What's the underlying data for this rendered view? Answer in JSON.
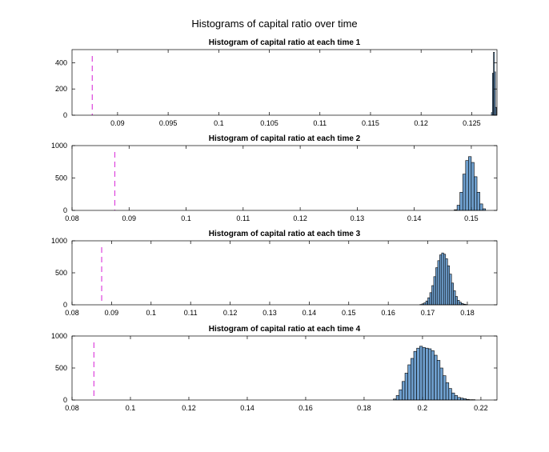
{
  "figure": {
    "title": "Histograms of capital ratio over time"
  },
  "colors": {
    "background": "#ffffff",
    "axis": "#000000",
    "bar_edge": "#000000",
    "bar_fill": "#6fa0cf",
    "threshold_line": "#dd44dd"
  },
  "chart_data": [
    {
      "type": "bar",
      "title": "Histogram of capital ratio at each time 1",
      "xlabel": "",
      "ylabel": "",
      "xlim": [
        0.0855,
        0.1275
      ],
      "ylim": [
        0,
        500
      ],
      "xticks": [
        0.09,
        0.095,
        0.1,
        0.105,
        0.11,
        0.115,
        0.12,
        0.125
      ],
      "xtick_labels": [
        "0.09",
        "0.095",
        "0.1",
        "0.105",
        "0.11",
        "0.115",
        "0.12",
        "0.125"
      ],
      "yticks": [
        0,
        200,
        400
      ],
      "ytick_labels": [
        "0",
        "200",
        "400"
      ],
      "grid": false,
      "threshold": 0.0875,
      "bins": [
        {
          "x0": 0.12695,
          "x1": 0.12705,
          "count": 20
        },
        {
          "x0": 0.12705,
          "x1": 0.12715,
          "count": 320
        },
        {
          "x0": 0.12715,
          "x1": 0.12725,
          "count": 480
        },
        {
          "x0": 0.12725,
          "x1": 0.12735,
          "count": 330
        },
        {
          "x0": 0.12735,
          "x1": 0.12745,
          "count": 60
        }
      ]
    },
    {
      "type": "bar",
      "title": "Histogram of capital ratio at each time 2",
      "xlabel": "",
      "ylabel": "",
      "xlim": [
        0.08,
        0.1545
      ],
      "ylim": [
        0,
        1000
      ],
      "xticks": [
        0.08,
        0.09,
        0.1,
        0.11,
        0.12,
        0.13,
        0.14,
        0.15
      ],
      "xtick_labels": [
        "0.08",
        "0.09",
        "0.1",
        "0.11",
        "0.12",
        "0.13",
        "0.14",
        "0.15"
      ],
      "yticks": [
        0,
        500,
        1000
      ],
      "ytick_labels": [
        "0",
        "500",
        "1000"
      ],
      "grid": false,
      "threshold": 0.0875,
      "bins": [
        {
          "x0": 0.147,
          "x1": 0.1475,
          "count": 10
        },
        {
          "x0": 0.1475,
          "x1": 0.148,
          "count": 80
        },
        {
          "x0": 0.148,
          "x1": 0.1485,
          "count": 280
        },
        {
          "x0": 0.1485,
          "x1": 0.149,
          "count": 560
        },
        {
          "x0": 0.149,
          "x1": 0.1495,
          "count": 770
        },
        {
          "x0": 0.1495,
          "x1": 0.15,
          "count": 830
        },
        {
          "x0": 0.15,
          "x1": 0.1505,
          "count": 740
        },
        {
          "x0": 0.1505,
          "x1": 0.151,
          "count": 520
        },
        {
          "x0": 0.151,
          "x1": 0.1515,
          "count": 280
        },
        {
          "x0": 0.1515,
          "x1": 0.152,
          "count": 100
        },
        {
          "x0": 0.152,
          "x1": 0.1525,
          "count": 25
        }
      ]
    },
    {
      "type": "bar",
      "title": "Histogram of capital ratio at each time 3",
      "xlabel": "",
      "ylabel": "",
      "xlim": [
        0.08,
        0.1875
      ],
      "ylim": [
        0,
        1000
      ],
      "xticks": [
        0.08,
        0.09,
        0.1,
        0.11,
        0.12,
        0.13,
        0.14,
        0.15,
        0.16,
        0.17,
        0.18
      ],
      "xtick_labels": [
        "0.08",
        "0.09",
        "0.1",
        "0.11",
        "0.12",
        "0.13",
        "0.14",
        "0.15",
        "0.16",
        "0.17",
        "0.18"
      ],
      "yticks": [
        0,
        500,
        1000
      ],
      "ytick_labels": [
        "0",
        "500",
        "1000"
      ],
      "grid": false,
      "threshold": 0.0875,
      "bins": [
        {
          "x0": 0.168,
          "x1": 0.1685,
          "count": 5
        },
        {
          "x0": 0.1685,
          "x1": 0.169,
          "count": 15
        },
        {
          "x0": 0.169,
          "x1": 0.1695,
          "count": 30
        },
        {
          "x0": 0.1695,
          "x1": 0.17,
          "count": 60
        },
        {
          "x0": 0.17,
          "x1": 0.1705,
          "count": 110
        },
        {
          "x0": 0.1705,
          "x1": 0.171,
          "count": 190
        },
        {
          "x0": 0.171,
          "x1": 0.1715,
          "count": 300
        },
        {
          "x0": 0.1715,
          "x1": 0.172,
          "count": 440
        },
        {
          "x0": 0.172,
          "x1": 0.1725,
          "count": 580
        },
        {
          "x0": 0.1725,
          "x1": 0.173,
          "count": 690
        },
        {
          "x0": 0.173,
          "x1": 0.1735,
          "count": 780
        },
        {
          "x0": 0.1735,
          "x1": 0.174,
          "count": 810
        },
        {
          "x0": 0.174,
          "x1": 0.1745,
          "count": 790
        },
        {
          "x0": 0.1745,
          "x1": 0.175,
          "count": 720
        },
        {
          "x0": 0.175,
          "x1": 0.1755,
          "count": 610
        },
        {
          "x0": 0.1755,
          "x1": 0.176,
          "count": 480
        },
        {
          "x0": 0.176,
          "x1": 0.1765,
          "count": 340
        },
        {
          "x0": 0.1765,
          "x1": 0.177,
          "count": 220
        },
        {
          "x0": 0.177,
          "x1": 0.1775,
          "count": 130
        },
        {
          "x0": 0.1775,
          "x1": 0.178,
          "count": 70
        },
        {
          "x0": 0.178,
          "x1": 0.1785,
          "count": 40
        },
        {
          "x0": 0.1785,
          "x1": 0.179,
          "count": 20
        },
        {
          "x0": 0.179,
          "x1": 0.1795,
          "count": 10
        },
        {
          "x0": 0.1795,
          "x1": 0.18,
          "count": 5
        }
      ]
    },
    {
      "type": "bar",
      "title": "Histogram of capital ratio at each time 4",
      "xlabel": "",
      "ylabel": "",
      "xlim": [
        0.08,
        0.2255
      ],
      "ylim": [
        0,
        1000
      ],
      "xticks": [
        0.08,
        0.1,
        0.12,
        0.14,
        0.16,
        0.18,
        0.2,
        0.22
      ],
      "xtick_labels": [
        "0.08",
        "0.1",
        "0.12",
        "0.14",
        "0.16",
        "0.18",
        "0.2",
        "0.22"
      ],
      "yticks": [
        0,
        500,
        1000
      ],
      "ytick_labels": [
        "0",
        "500",
        "1000"
      ],
      "grid": false,
      "threshold": 0.0875,
      "bins": [
        {
          "x0": 0.19,
          "x1": 0.191,
          "count": 15
        },
        {
          "x0": 0.191,
          "x1": 0.192,
          "count": 70
        },
        {
          "x0": 0.192,
          "x1": 0.193,
          "count": 160
        },
        {
          "x0": 0.193,
          "x1": 0.194,
          "count": 290
        },
        {
          "x0": 0.194,
          "x1": 0.195,
          "count": 420
        },
        {
          "x0": 0.195,
          "x1": 0.196,
          "count": 550
        },
        {
          "x0": 0.196,
          "x1": 0.197,
          "count": 650
        },
        {
          "x0": 0.197,
          "x1": 0.198,
          "count": 760
        },
        {
          "x0": 0.198,
          "x1": 0.199,
          "count": 810
        },
        {
          "x0": 0.199,
          "x1": 0.2,
          "count": 840
        },
        {
          "x0": 0.2,
          "x1": 0.201,
          "count": 820
        },
        {
          "x0": 0.201,
          "x1": 0.202,
          "count": 810
        },
        {
          "x0": 0.202,
          "x1": 0.203,
          "count": 800
        },
        {
          "x0": 0.203,
          "x1": 0.204,
          "count": 770
        },
        {
          "x0": 0.204,
          "x1": 0.205,
          "count": 700
        },
        {
          "x0": 0.205,
          "x1": 0.206,
          "count": 620
        },
        {
          "x0": 0.206,
          "x1": 0.207,
          "count": 500
        },
        {
          "x0": 0.207,
          "x1": 0.208,
          "count": 380
        },
        {
          "x0": 0.208,
          "x1": 0.209,
          "count": 270
        },
        {
          "x0": 0.209,
          "x1": 0.21,
          "count": 180
        },
        {
          "x0": 0.21,
          "x1": 0.211,
          "count": 110
        },
        {
          "x0": 0.211,
          "x1": 0.212,
          "count": 70
        },
        {
          "x0": 0.212,
          "x1": 0.213,
          "count": 40
        },
        {
          "x0": 0.213,
          "x1": 0.214,
          "count": 30
        },
        {
          "x0": 0.214,
          "x1": 0.215,
          "count": 20
        },
        {
          "x0": 0.215,
          "x1": 0.216,
          "count": 10
        },
        {
          "x0": 0.216,
          "x1": 0.217,
          "count": 5
        },
        {
          "x0": 0.217,
          "x1": 0.218,
          "count": 5
        }
      ]
    }
  ]
}
